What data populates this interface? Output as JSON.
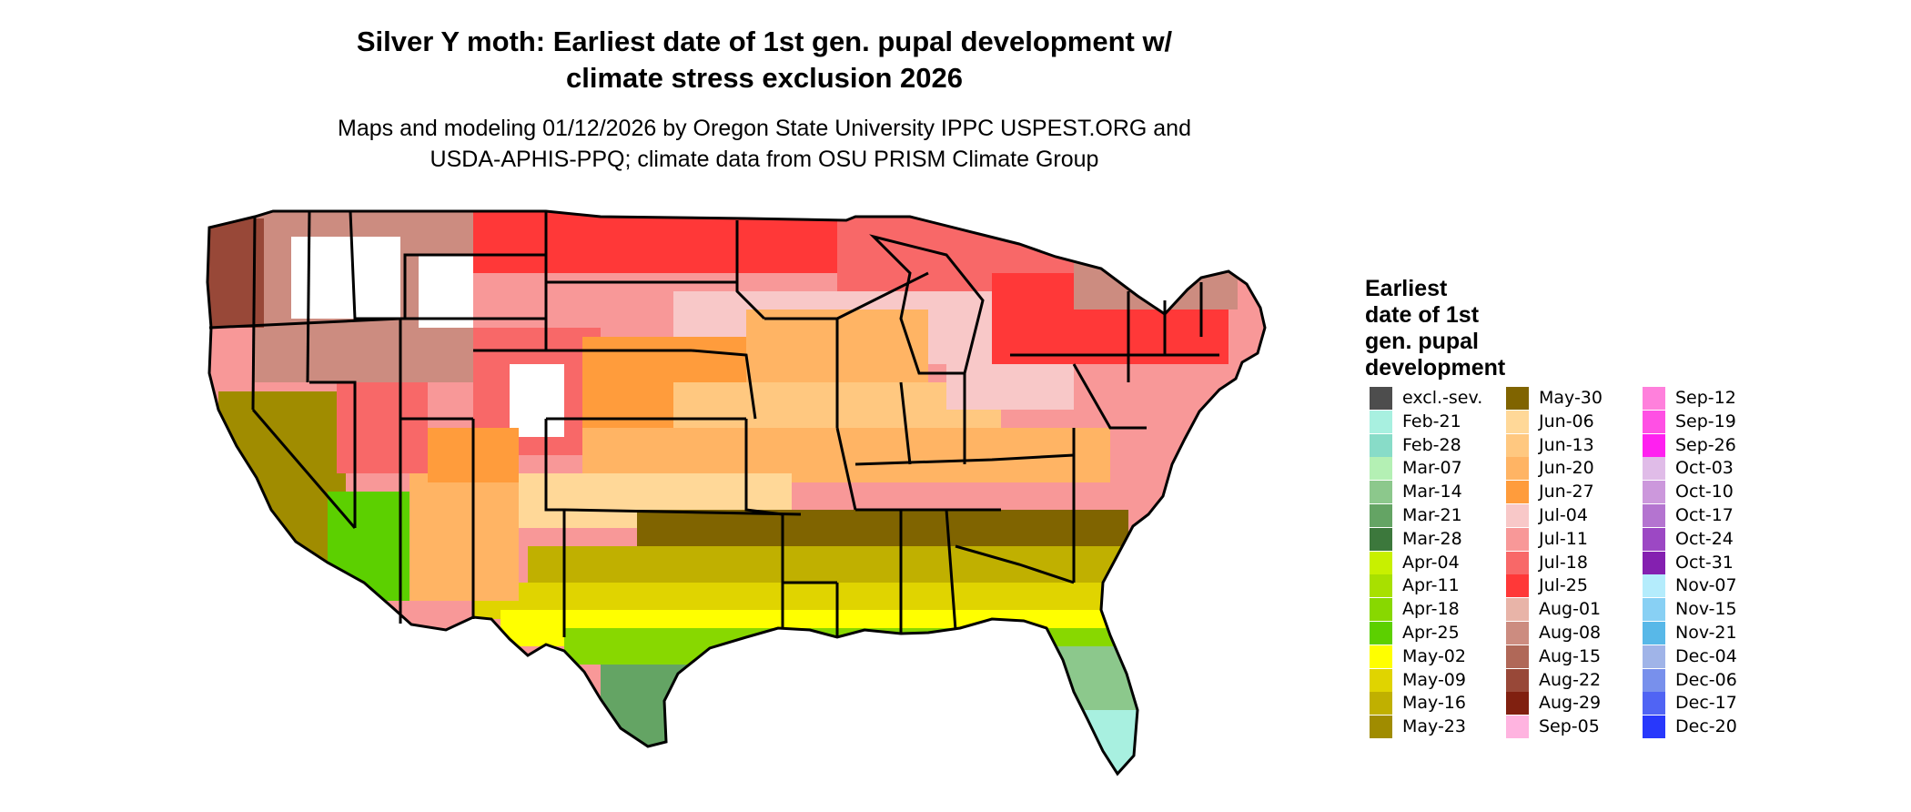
{
  "title_line1": "Silver Y moth: Earliest date of 1st gen. pupal development w/",
  "title_line2": "climate stress exclusion 2026",
  "subtitle_line1": "Maps and modeling 01/12/2026 by Oregon State University IPPC USPEST.ORG and",
  "subtitle_line2": "USDA-APHIS-PPQ; climate data from OSU PRISM Climate Group",
  "legend": {
    "title_lines": [
      "Earliest",
      "date of 1st",
      "gen. pupal",
      "development"
    ],
    "columns": [
      [
        {
          "label": "excl.-sev.",
          "color": "#4d4d4d"
        },
        {
          "label": "Feb-21",
          "color": "#a8f0e0"
        },
        {
          "label": "Feb-28",
          "color": "#88dcc8"
        },
        {
          "label": "Mar-07",
          "color": "#b4f0b4"
        },
        {
          "label": "Mar-14",
          "color": "#8cc88c"
        },
        {
          "label": "Mar-21",
          "color": "#64a464"
        },
        {
          "label": "Mar-28",
          "color": "#3c783c"
        },
        {
          "label": "Apr-04",
          "color": "#c8f000"
        },
        {
          "label": "Apr-11",
          "color": "#a8e000"
        },
        {
          "label": "Apr-18",
          "color": "#88d800"
        },
        {
          "label": "Apr-25",
          "color": "#5cd000"
        },
        {
          "label": "May-02",
          "color": "#ffff00"
        },
        {
          "label": "May-09",
          "color": "#e0d400"
        },
        {
          "label": "May-16",
          "color": "#c0b000"
        },
        {
          "label": "May-23",
          "color": "#a08c00"
        }
      ],
      [
        {
          "label": "May-30",
          "color": "#806400"
        },
        {
          "label": "Jun-06",
          "color": "#ffd898"
        },
        {
          "label": "Jun-13",
          "color": "#ffc880"
        },
        {
          "label": "Jun-20",
          "color": "#ffb464"
        },
        {
          "label": "Jun-27",
          "color": "#ff9c3c"
        },
        {
          "label": "Jul-04",
          "color": "#f8c8c8"
        },
        {
          "label": "Jul-11",
          "color": "#f89898"
        },
        {
          "label": "Jul-18",
          "color": "#f86868"
        },
        {
          "label": "Jul-25",
          "color": "#ff3838"
        },
        {
          "label": "Aug-01",
          "color": "#e8b4a8"
        },
        {
          "label": "Aug-08",
          "color": "#cc8c80"
        },
        {
          "label": "Aug-15",
          "color": "#b06858"
        },
        {
          "label": "Aug-22",
          "color": "#984838"
        },
        {
          "label": "Aug-29",
          "color": "#802010"
        },
        {
          "label": "Sep-05",
          "color": "#ffb4e0"
        }
      ],
      [
        {
          "label": "Sep-12",
          "color": "#ff80dc"
        },
        {
          "label": "Sep-19",
          "color": "#ff50e4"
        },
        {
          "label": "Sep-26",
          "color": "#ff20f0"
        },
        {
          "label": "Oct-03",
          "color": "#e0bce8"
        },
        {
          "label": "Oct-10",
          "color": "#cc98dc"
        },
        {
          "label": "Oct-17",
          "color": "#b474d0"
        },
        {
          "label": "Oct-24",
          "color": "#9c48c4"
        },
        {
          "label": "Oct-31",
          "color": "#8420b0"
        },
        {
          "label": "Nov-07",
          "color": "#b4ecfc"
        },
        {
          "label": "Nov-15",
          "color": "#88d0f4"
        },
        {
          "label": "Nov-21",
          "color": "#58b8e8"
        },
        {
          "label": "Dec-04",
          "color": "#a0b4e8"
        },
        {
          "label": "Dec-06",
          "color": "#7890ec"
        },
        {
          "label": "Dec-17",
          "color": "#5064f4"
        },
        {
          "label": "Dec-20",
          "color": "#2838fc"
        }
      ]
    ]
  }
}
